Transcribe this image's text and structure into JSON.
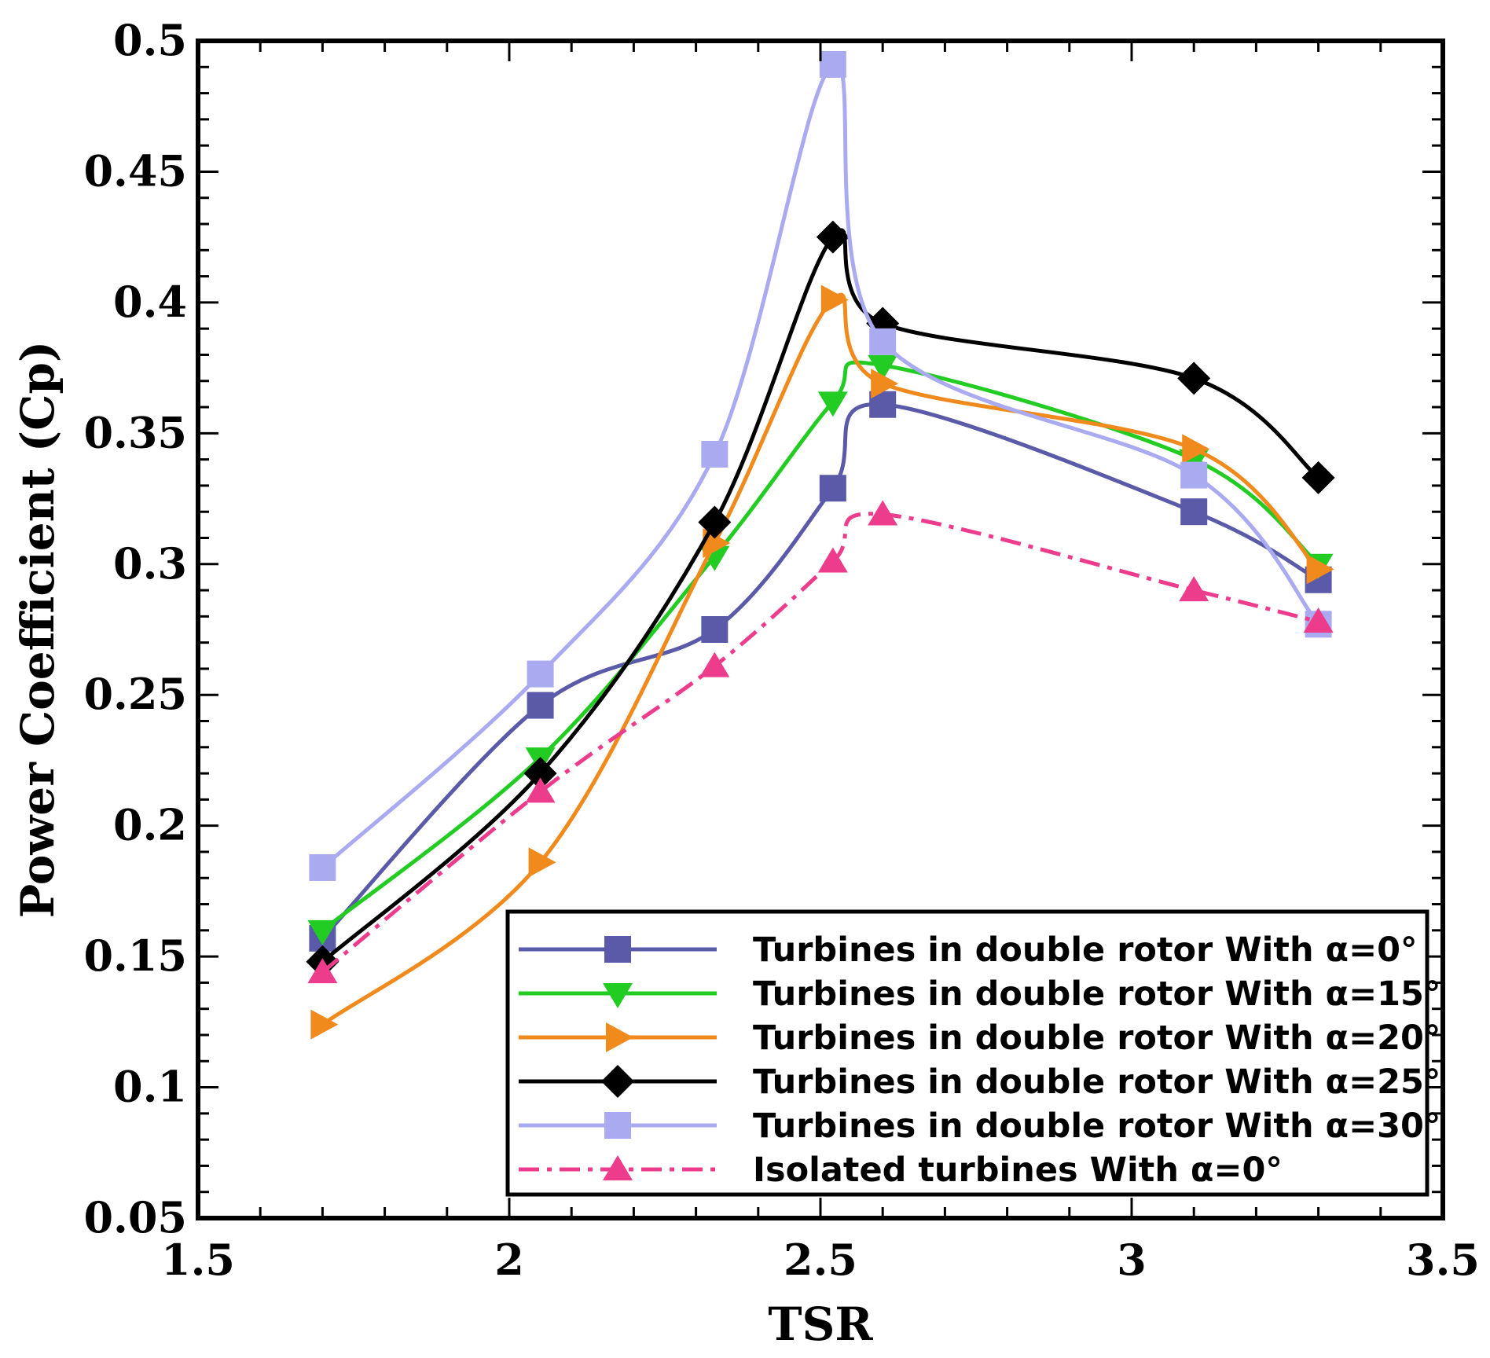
{
  "chart_data": {
    "type": "line",
    "title": "",
    "xlabel": "TSR",
    "ylabel": "Power Coefficient (Cp)",
    "xlim": [
      1.5,
      3.5
    ],
    "ylim": [
      0.05,
      0.5
    ],
    "xticks": [
      1.5,
      2,
      2.5,
      3,
      3.5
    ],
    "xtick_labels": [
      "1.5",
      "2",
      "2.5",
      "3",
      "3.5"
    ],
    "yticks": [
      0.05,
      0.1,
      0.15,
      0.2,
      0.25,
      0.3,
      0.35,
      0.4,
      0.45,
      0.5
    ],
    "ytick_labels": [
      "0.05",
      "0.1",
      "0.15",
      "0.2",
      "0.25",
      "0.3",
      "0.35",
      "0.4",
      "0.45",
      "0.5"
    ],
    "grid": false,
    "legend_position": "bottom-right",
    "x": [
      1.7,
      2.05,
      2.33,
      2.52,
      2.6,
      3.1,
      3.3
    ],
    "series": [
      {
        "name": "Turbines in double rotor With α=0°",
        "color": "#5a5aa8",
        "marker": "square",
        "dash": "solid",
        "values": [
          0.157,
          0.246,
          0.275,
          0.329,
          0.361,
          0.32,
          0.294
        ]
      },
      {
        "name": "Turbines in double rotor With α=15°",
        "color": "#22cc22",
        "marker": "triangle-down",
        "dash": "solid",
        "values": [
          0.16,
          0.226,
          0.303,
          0.362,
          0.376,
          0.34,
          0.3
        ]
      },
      {
        "name": "Turbines in double rotor With α=20°",
        "color": "#f08a1c",
        "marker": "triangle-right",
        "dash": "solid",
        "values": [
          0.124,
          0.186,
          0.308,
          0.401,
          0.369,
          0.344,
          0.298
        ]
      },
      {
        "name": "Turbines in double rotor With α=25°",
        "color": "#000000",
        "marker": "diamond",
        "dash": "solid",
        "values": [
          0.148,
          0.22,
          0.316,
          0.425,
          0.392,
          0.371,
          0.333
        ]
      },
      {
        "name": "Turbines in double rotor With α=30°",
        "color": "#aaaaf0",
        "marker": "square",
        "dash": "solid",
        "values": [
          0.184,
          0.258,
          0.342,
          0.491,
          0.385,
          0.334,
          0.277
        ]
      },
      {
        "name": "Isolated turbines With α=0°",
        "color": "#ee3c8c",
        "marker": "triangle-up",
        "dash": "dashdot",
        "values": [
          0.144,
          0.213,
          0.261,
          0.301,
          0.319,
          0.29,
          0.278
        ]
      }
    ]
  }
}
